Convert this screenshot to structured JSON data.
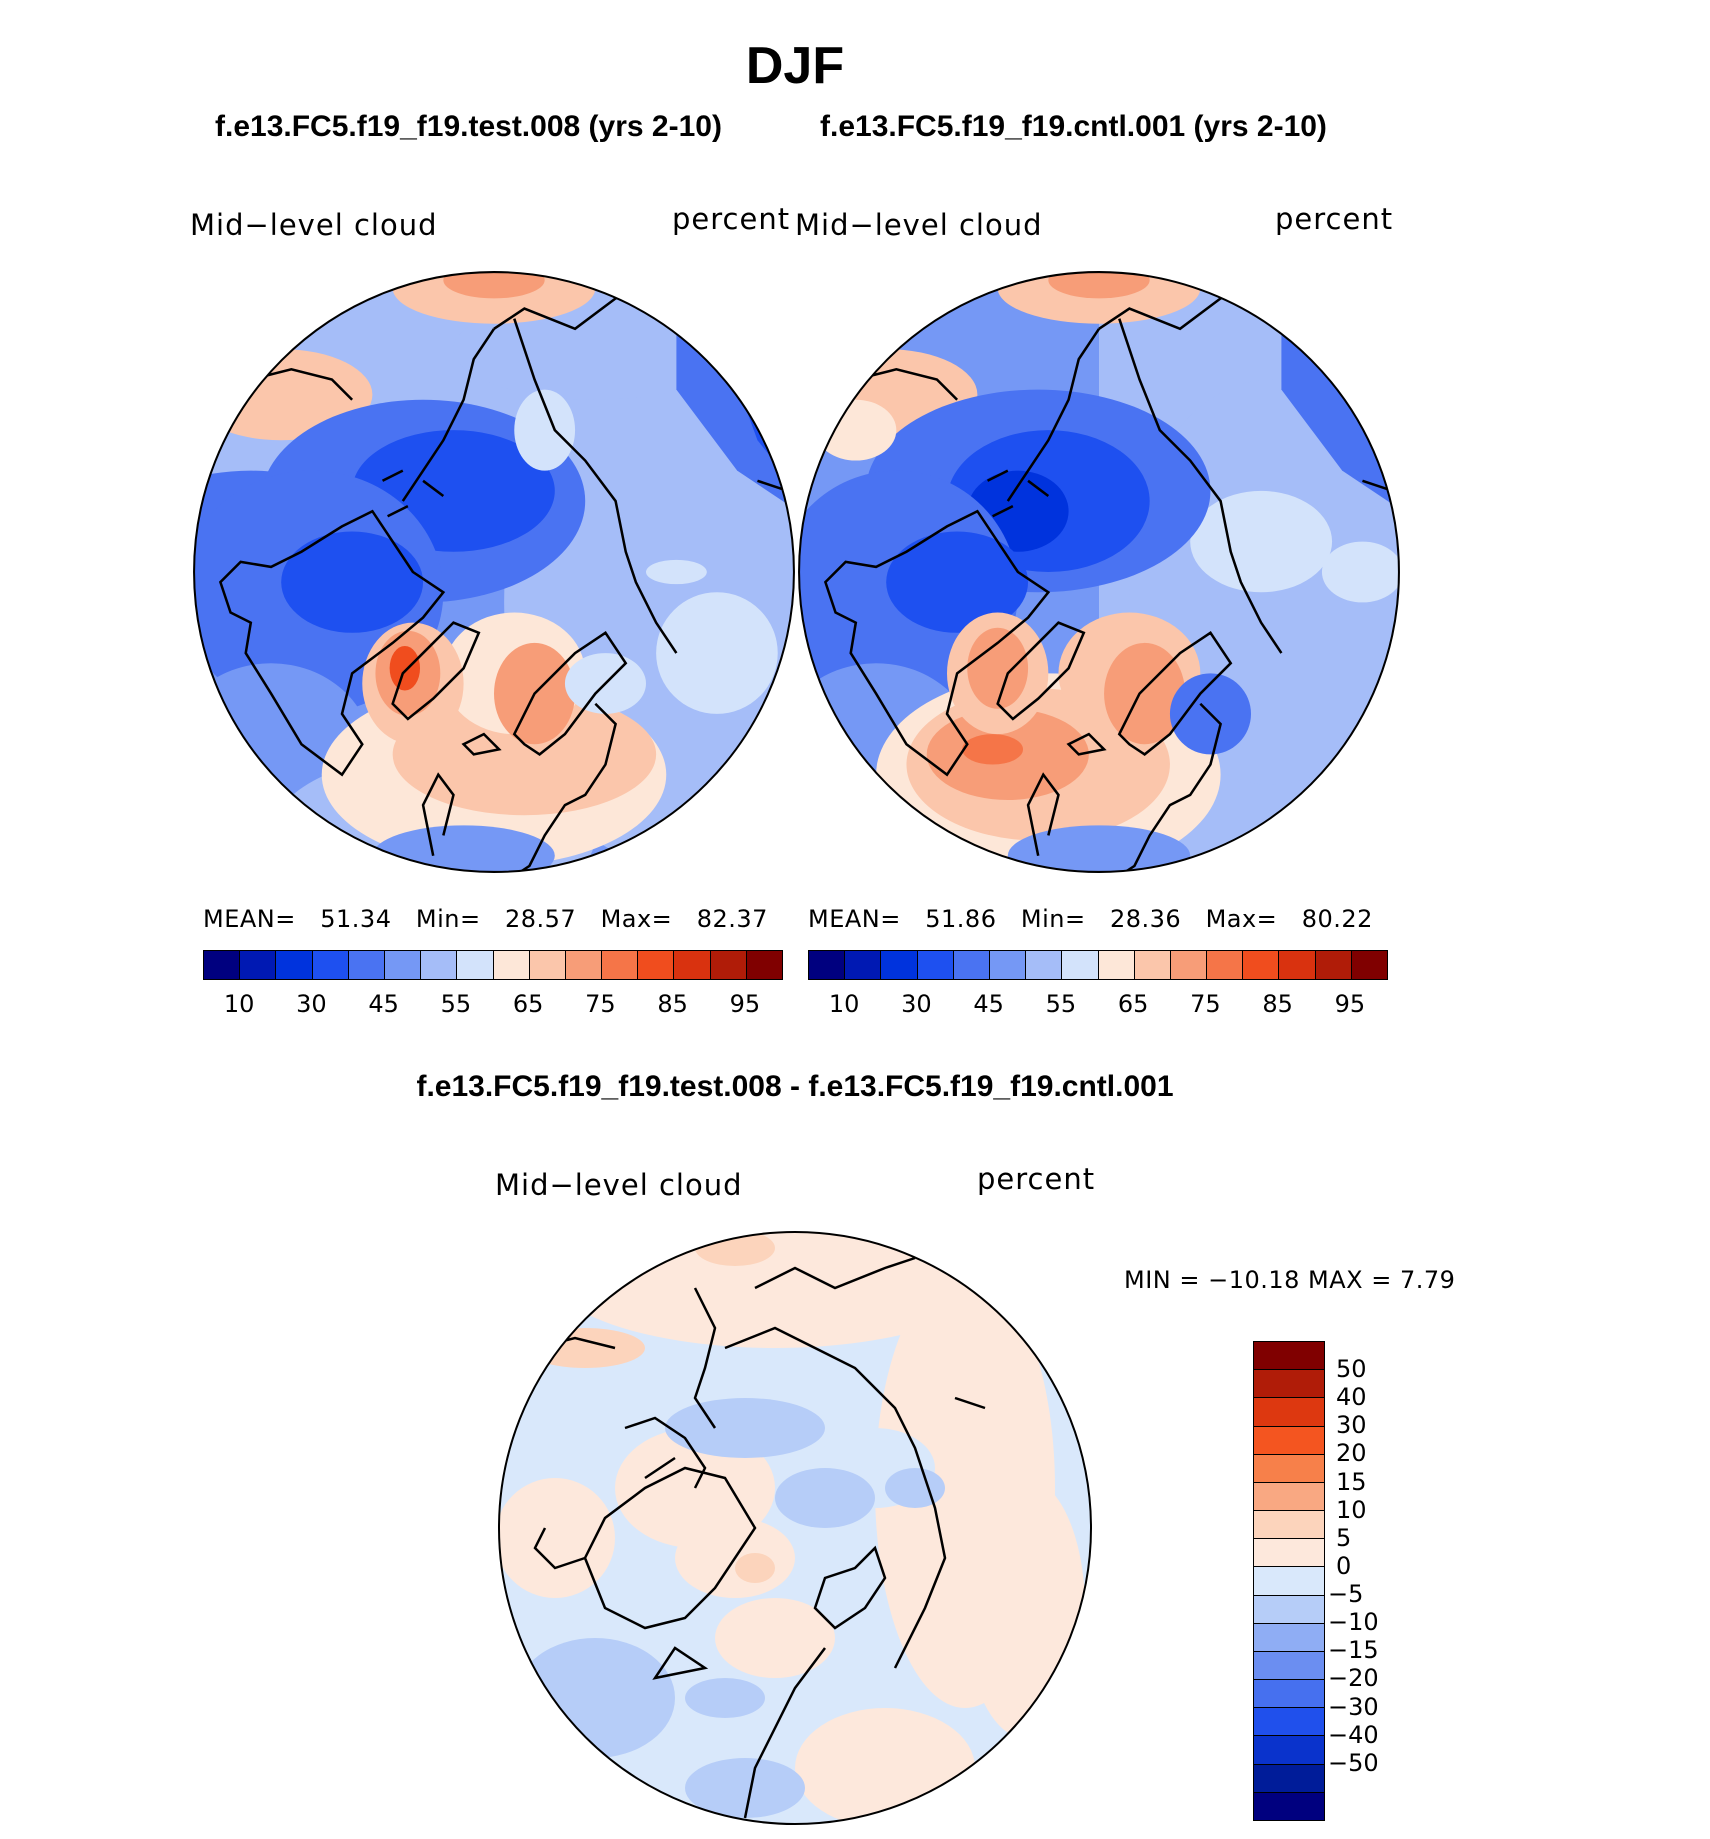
{
  "title": "DJF",
  "panels": [
    {
      "case_title": "f.e13.FC5.f19_f19.test.008 (yrs 2-10)",
      "variable": "Mid−level  cloud",
      "units": "percent",
      "stats": {
        "mean_label": "MEAN=",
        "mean": "51.34",
        "min_label": "Min=",
        "min": "28.57",
        "max_label": "Max=",
        "max": "82.37"
      }
    },
    {
      "case_title": "f.e13.FC5.f19_f19.cntl.001 (yrs 2-10)",
      "variable": "Mid−level  cloud",
      "units": "percent",
      "stats": {
        "mean_label": "MEAN=",
        "mean": "51.86",
        "min_label": "Min=",
        "min": "28.36",
        "max_label": "Max=",
        "max": "80.22"
      }
    }
  ],
  "difference": {
    "title": "f.e13.FC5.f19_f19.test.008 - f.e13.FC5.f19_f19.cntl.001",
    "variable": "Mid−level  cloud",
    "units": "percent",
    "minmax": "MIN  =  −10.18  MAX  =     7.79"
  },
  "colorbar_top": {
    "colors": [
      "#00007f",
      "#0019b3",
      "#0033dd",
      "#1e50f0",
      "#4a73f2",
      "#7598f5",
      "#a5bdf8",
      "#d3e3fb",
      "#fde7d8",
      "#fbc6ab",
      "#f79d78",
      "#f57548",
      "#f04d1e",
      "#d9320f",
      "#b01c08",
      "#800000"
    ],
    "ticks": [
      "10",
      "30",
      "45",
      "55",
      "65",
      "75",
      "85",
      "95"
    ]
  },
  "colorbar_diff": {
    "colors": [
      "#800000",
      "#b01c08",
      "#dd3810",
      "#f45520",
      "#f7804a",
      "#f9a882",
      "#fcd4bc",
      "#fde8dc",
      "#d9e8fb",
      "#b6cdf8",
      "#8fadf4",
      "#6b8ef1",
      "#4670ef",
      "#2050ec",
      "#0a33cc",
      "#001c99",
      "#00007f"
    ],
    "ticks": [
      "50",
      "40",
      "30",
      "20",
      "15",
      "10",
      "5",
      "0",
      "−5",
      "−10",
      "−15",
      "−20",
      "−30",
      "−40",
      "−50"
    ]
  }
}
